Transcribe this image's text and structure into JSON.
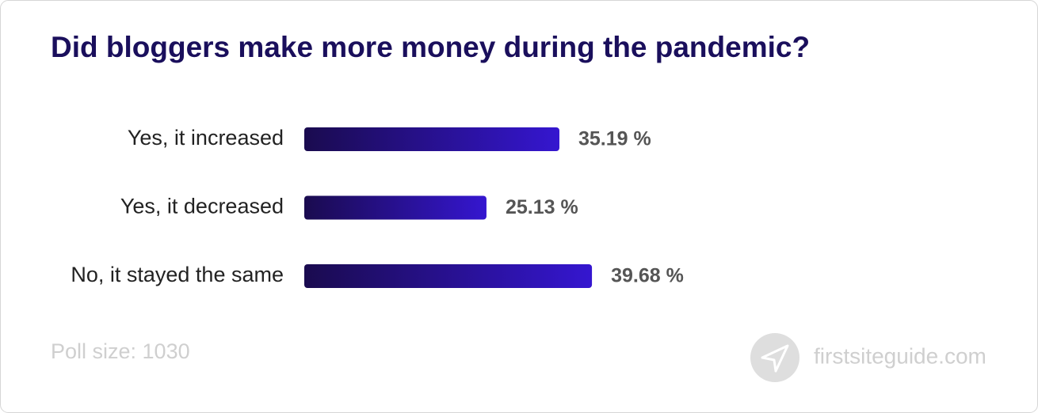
{
  "chart_data": {
    "type": "hbar",
    "title": "Did bloggers make more money during the pandemic?",
    "categories": [
      "Yes, it increased",
      "Yes, it decreased",
      "No, it stayed the same"
    ],
    "values": [
      35.19,
      25.13,
      39.68
    ],
    "value_labels": [
      "35.19 %",
      "25.13 %",
      "39.68 %"
    ],
    "gradient": [
      "#1a0b4f",
      "#3516d0"
    ],
    "note": "Poll size: 1030",
    "source": "firstsiteguide.com"
  }
}
